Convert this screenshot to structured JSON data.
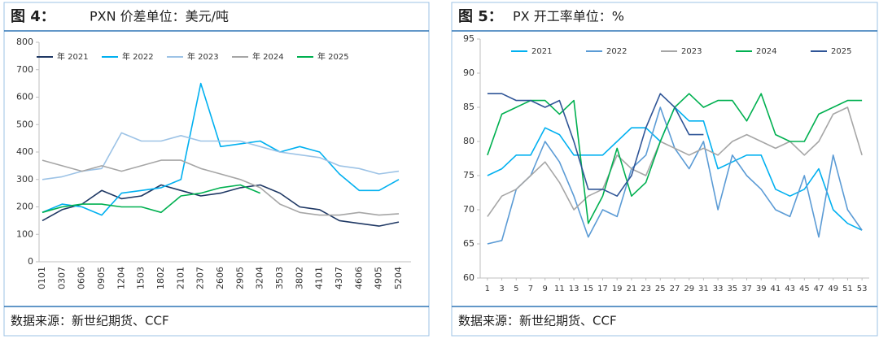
{
  "chart_data": [
    {
      "type": "line",
      "figure_label": "图 4：",
      "title": "PXN 价差单位：美元/吨",
      "source": "数据来源：新世纪期货、CCF",
      "categories": [
        "0101",
        "0307",
        "0606",
        "0905",
        "1204",
        "1503",
        "1802",
        "2101",
        "2307",
        "2606",
        "2905",
        "3204",
        "3503",
        "3802",
        "4101",
        "4307",
        "4606",
        "4905",
        "5204"
      ],
      "ylim": [
        0,
        800
      ],
      "yticks": [
        0,
        100,
        200,
        300,
        400,
        500,
        600,
        700,
        800
      ],
      "x_labels_rotated": true,
      "series": [
        {
          "name": "年 2021",
          "color": "#1f3864",
          "values": [
            150,
            190,
            210,
            260,
            230,
            240,
            280,
            260,
            240,
            250,
            270,
            280,
            250,
            200,
            190,
            150,
            140,
            130,
            145
          ]
        },
        {
          "name": "年 2022",
          "color": "#00b0f0",
          "values": [
            180,
            210,
            200,
            170,
            250,
            260,
            270,
            300,
            650,
            420,
            430,
            440,
            400,
            420,
            400,
            320,
            260,
            260,
            300
          ]
        },
        {
          "name": "年 2023",
          "color": "#9dc3e6",
          "values": [
            300,
            310,
            330,
            340,
            470,
            440,
            440,
            460,
            440,
            440,
            440,
            420,
            400,
            390,
            380,
            350,
            340,
            320,
            330
          ]
        },
        {
          "name": "年 2024",
          "color": "#a6a6a6",
          "values": [
            370,
            350,
            330,
            350,
            330,
            350,
            370,
            370,
            340,
            320,
            300,
            270,
            210,
            180,
            170,
            170,
            180,
            170,
            175
          ]
        },
        {
          "name": "年 2025",
          "color": "#00b050",
          "values": [
            180,
            200,
            210,
            210,
            200,
            200,
            180,
            240,
            250,
            270,
            280,
            250,
            null,
            null,
            null,
            null,
            null,
            null,
            null
          ]
        }
      ]
    },
    {
      "type": "line",
      "figure_label": "图 5：",
      "title": "PX 开工率单位：%",
      "source": "数据来源：新世纪期货、CCF",
      "x": [
        1,
        3,
        5,
        7,
        9,
        11,
        13,
        15,
        17,
        19,
        21,
        23,
        25,
        27,
        29,
        31,
        33,
        35,
        37,
        39,
        41,
        43,
        45,
        47,
        49,
        51,
        53
      ],
      "xlim": [
        0,
        54
      ],
      "xticks": [
        1,
        3,
        5,
        7,
        9,
        11,
        13,
        15,
        17,
        19,
        21,
        23,
        25,
        27,
        29,
        31,
        33,
        35,
        37,
        39,
        41,
        43,
        45,
        47,
        49,
        51,
        53
      ],
      "ylim": [
        60,
        95
      ],
      "yticks": [
        60,
        65,
        70,
        75,
        80,
        85,
        90,
        95
      ],
      "series": [
        {
          "name": "2021",
          "color": "#00b0f0",
          "values": [
            75,
            76,
            78,
            78,
            82,
            81,
            78,
            78,
            78,
            80,
            82,
            82,
            80,
            85,
            83,
            83,
            76,
            77,
            78,
            78,
            73,
            72,
            73,
            76,
            70,
            68,
            67
          ]
        },
        {
          "name": "2022",
          "color": "#5b9bd5",
          "values": [
            65,
            65.5,
            73,
            75,
            80,
            77,
            72,
            66,
            70,
            69,
            76,
            78,
            85,
            79,
            76,
            80,
            70,
            78,
            75,
            73,
            70,
            69,
            75,
            66,
            78,
            70,
            67
          ]
        },
        {
          "name": "2023",
          "color": "#a6a6a6",
          "values": [
            69,
            72,
            73,
            75,
            77,
            74,
            70,
            72,
            73,
            78,
            76,
            75,
            80,
            79,
            78,
            79,
            78,
            80,
            81,
            80,
            79,
            80,
            78,
            80,
            84,
            85,
            78
          ]
        },
        {
          "name": "2024",
          "color": "#00b050",
          "values": [
            78,
            84,
            85,
            86,
            86,
            84,
            86,
            68,
            72,
            79,
            72,
            74,
            80,
            85,
            87,
            85,
            86,
            86,
            83,
            87,
            81,
            80,
            80,
            84,
            85,
            86,
            86
          ]
        },
        {
          "name": "2025",
          "color": "#2f5597",
          "values": [
            87,
            87,
            86,
            86,
            85,
            86,
            80,
            73,
            73,
            72,
            75,
            82,
            87,
            85,
            81,
            81,
            null,
            null,
            null,
            null,
            null,
            null,
            null,
            null,
            null,
            null,
            null
          ]
        }
      ]
    }
  ]
}
